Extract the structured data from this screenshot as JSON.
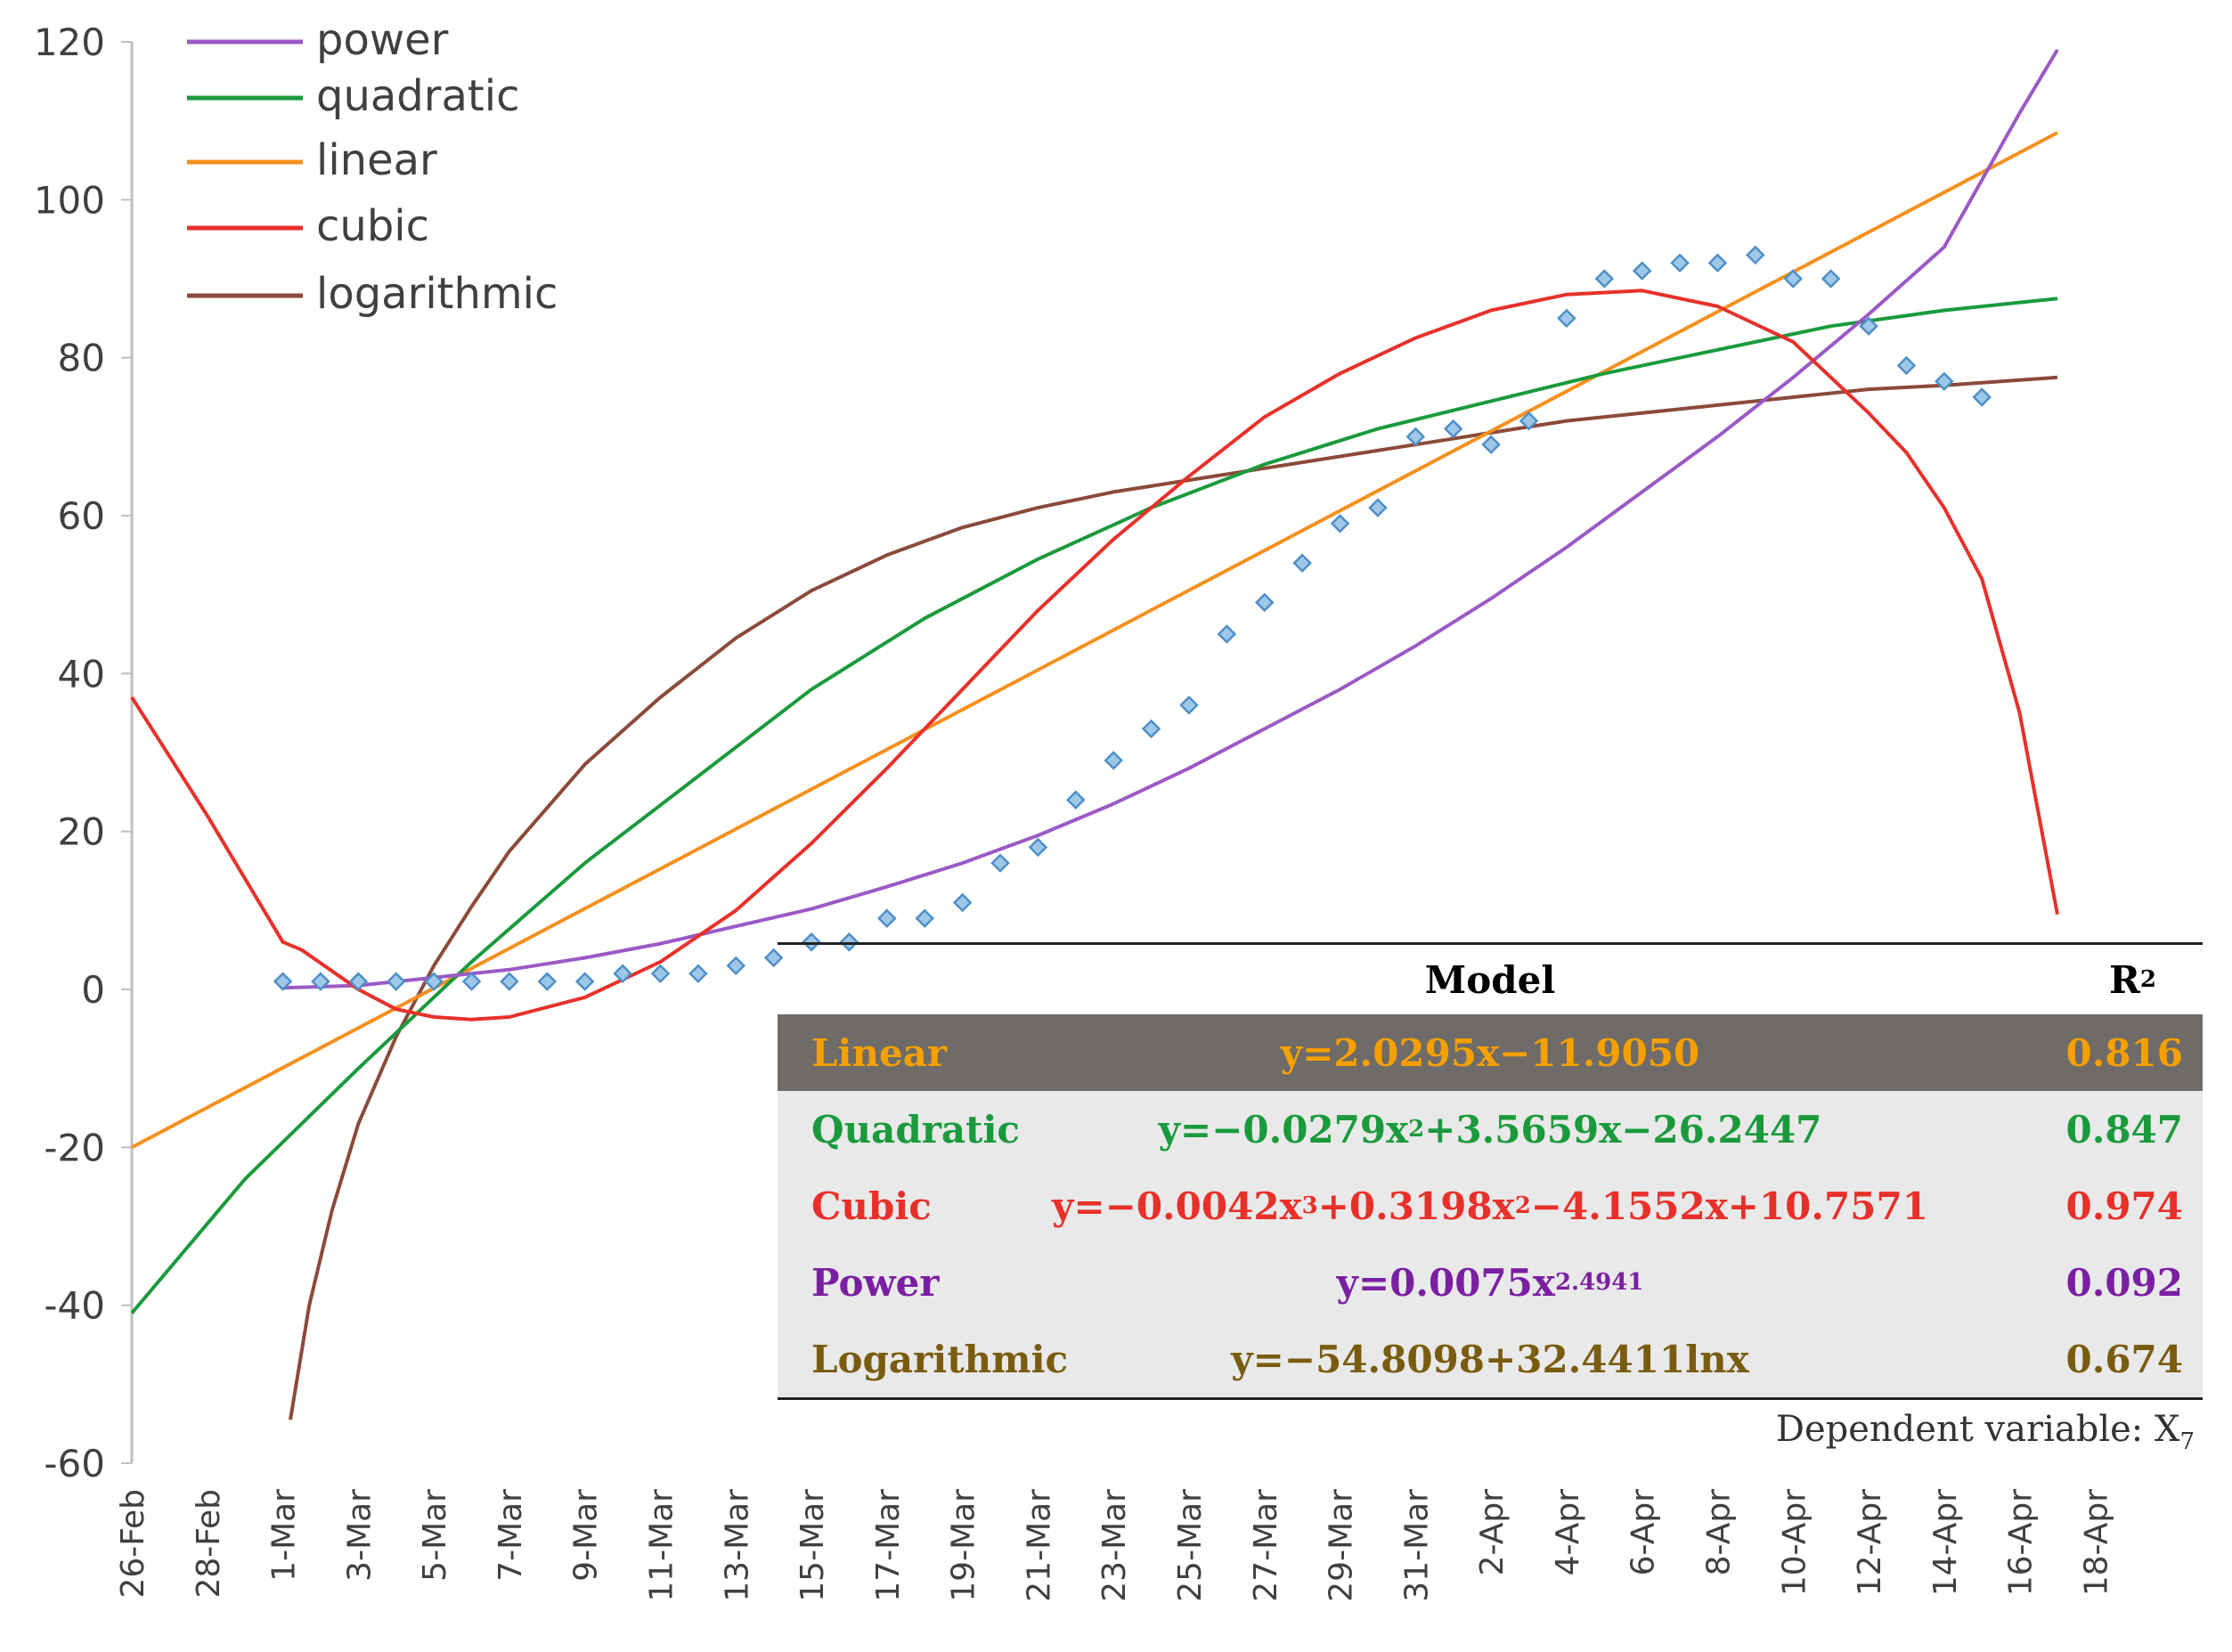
{
  "chart_data": {
    "type": "scatter",
    "title": "",
    "xlabel": "",
    "ylabel": "",
    "ylim": [
      -60,
      120
    ],
    "y_ticks": [
      "120",
      "100",
      "80",
      "60",
      "40",
      "20",
      "0",
      "-20",
      "-40",
      "-60"
    ],
    "x_ticks": [
      "26-Feb",
      "28-Feb",
      "1-Mar",
      "3-Mar",
      "5-Mar",
      "7-Mar",
      "9-Mar",
      "11-Mar",
      "13-Mar",
      "15-Mar",
      "17-Mar",
      "19-Mar",
      "21-Mar",
      "23-Mar",
      "25-Mar",
      "27-Mar",
      "29-Mar",
      "31-Mar",
      "2-Apr",
      "4-Apr",
      "6-Apr",
      "8-Apr",
      "10-Apr",
      "12-Apr",
      "14-Apr",
      "16-Apr",
      "18-Apr"
    ],
    "x_day_range": [
      0,
      51
    ],
    "observed": {
      "name": "observed",
      "x": [
        4,
        5,
        6,
        7,
        8,
        9,
        10,
        11,
        12,
        13,
        14,
        15,
        16,
        17,
        18,
        19,
        20,
        21,
        22,
        23,
        24,
        25,
        26,
        27,
        28,
        29,
        30,
        31,
        32,
        33,
        34,
        35,
        36,
        37,
        38,
        39,
        40,
        41,
        42,
        43,
        44,
        45,
        46,
        47,
        48,
        49
      ],
      "y": [
        1,
        1,
        1,
        1,
        1,
        1,
        1,
        1,
        1,
        2,
        2,
        2,
        3,
        4,
        6,
        6,
        9,
        9,
        11,
        16,
        18,
        24,
        29,
        33,
        36,
        45,
        49,
        54,
        59,
        61,
        70,
        71,
        69,
        72,
        85,
        90,
        91,
        92,
        92,
        93,
        90,
        90,
        84,
        79,
        77,
        75
      ]
    },
    "series": [
      {
        "name": "power",
        "color": "#9b59c6",
        "x": [
          4,
          6,
          8,
          10,
          12,
          14,
          16,
          18,
          20,
          22,
          24,
          26,
          28,
          30,
          32,
          34,
          36,
          38,
          40,
          42,
          44,
          46,
          48,
          50,
          51
        ],
        "values": [
          0.2,
          0.5,
          1.5,
          2.5,
          4.0,
          5.8,
          8.0,
          10.2,
          13.0,
          16.0,
          19.5,
          23.5,
          28.0,
          33.0,
          38.0,
          43.5,
          49.5,
          56.0,
          63.0,
          70.0,
          77.5,
          85.5,
          94.0,
          111.0,
          119.0
        ]
      },
      {
        "name": "quadratic",
        "color": "#1a9a3c",
        "x": [
          0,
          3,
          6,
          9,
          12,
          15,
          18,
          21,
          24,
          27,
          30,
          33,
          36,
          39,
          42,
          45,
          48,
          51
        ],
        "values": [
          -41.0,
          -24.0,
          -10.0,
          3.5,
          16.0,
          27.0,
          38.0,
          47.0,
          54.5,
          61.0,
          66.5,
          71.0,
          74.5,
          78.0,
          81.0,
          84.0,
          86.0,
          87.5
        ]
      },
      {
        "name": "linear",
        "color": "#f5901e",
        "x": [
          0,
          51
        ],
        "values": [
          -20.0,
          108.5
        ]
      },
      {
        "name": "cubic",
        "color": "#e8302a",
        "x": [
          0,
          2,
          4,
          4.5,
          6,
          7,
          8,
          9,
          10,
          12,
          14,
          16,
          18,
          20,
          22,
          24,
          26,
          28,
          30,
          32,
          34,
          36,
          38,
          40,
          42,
          44,
          46,
          47,
          48,
          49,
          50,
          51
        ],
        "values": [
          37.0,
          22.0,
          6.0,
          5.0,
          0.0,
          -2.5,
          -3.5,
          -3.8,
          -3.5,
          -1.0,
          3.5,
          10.0,
          18.5,
          28.0,
          38.0,
          48.0,
          57.0,
          65.0,
          72.5,
          78.0,
          82.5,
          86.0,
          88.0,
          88.5,
          86.5,
          82.0,
          73.0,
          68.0,
          61.0,
          52.0,
          35.0,
          9.5
        ]
      },
      {
        "name": "logarithmic",
        "color": "#8b4a3a",
        "x": [
          4.2,
          4.7,
          5.3,
          6,
          7,
          8,
          9,
          10,
          12,
          14,
          16,
          18,
          20,
          22,
          24,
          26,
          28,
          30,
          32,
          34,
          36,
          38,
          40,
          42,
          44,
          46,
          48,
          51
        ],
        "values": [
          -54.5,
          -40.0,
          -28.0,
          -17.0,
          -6.0,
          3.0,
          10.5,
          17.5,
          28.5,
          37.0,
          44.5,
          50.5,
          55.0,
          58.5,
          61.0,
          63.0,
          64.5,
          66.0,
          67.5,
          69.0,
          70.5,
          72.0,
          73.0,
          74.0,
          75.0,
          76.0,
          76.5,
          77.5
        ]
      }
    ],
    "legend": [
      "power",
      "quadratic",
      "linear",
      "cubic",
      "logarithmic"
    ],
    "legend_position": "top-left"
  },
  "table": {
    "header_model": "Model",
    "header_r2": "R",
    "header_r2_sup": "2",
    "rows": [
      {
        "name": "Linear",
        "color": "#f5a000",
        "f": [
          "y=2.0295x−11.9050"
        ],
        "r2": "0.816",
        "highlight": true
      },
      {
        "name": "Quadratic",
        "color": "#1a9a3c",
        "f": [
          "y=−0.0279x",
          "2",
          "+3.5659x−26.2447"
        ],
        "r2": "0.847"
      },
      {
        "name": "Cubic",
        "color": "#e8302a",
        "f": [
          "y=−0.0042x",
          "3",
          "+0.3198x",
          "2",
          "−4.1552x+10.7571"
        ],
        "r2": "0.974"
      },
      {
        "name": "Power",
        "color": "#7b1fa2",
        "f": [
          "y=0.0075x",
          "2.4941"
        ],
        "r2": "0.092"
      },
      {
        "name": "Logarithmic",
        "color": "#7a5c10",
        "f": [
          "y=−54.8098+32.4411lnx"
        ],
        "r2": "0.674"
      }
    ],
    "footer_main": "Dependent variable: X",
    "footer_sub": "7"
  }
}
